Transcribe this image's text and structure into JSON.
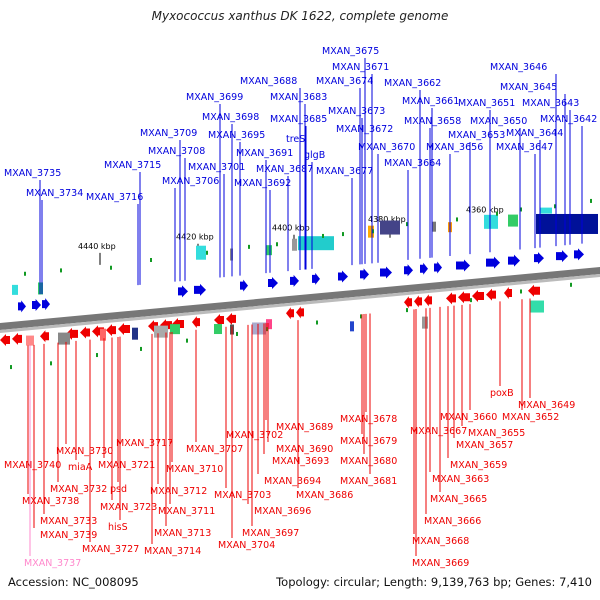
{
  "title": "Myxococcus xanthus DK 1622, complete genome",
  "footer": {
    "accession": "Accession: NC_008095",
    "stats": "Topology: circular; Length: 9,139,763 bp; Genes: 7,410"
  },
  "colors": {
    "forward": "#0000dd",
    "reverse": "#ee0000",
    "highlight": "#ff88cc",
    "backbone": "#777777"
  },
  "ticks": [
    "4440 kbp",
    "4420 kbp",
    "4400 kbp",
    "4380 kbp",
    "4360 kbp"
  ],
  "forward_labels": [
    "MXAN_3675",
    "MXAN_3671",
    "MXAN_3674",
    "MXAN_3662",
    "MXAN_3646",
    "MXAN_3645",
    "MXAN_3688",
    "MXAN_3683",
    "MXAN_3699",
    "MXAN_3673",
    "MXAN_3661",
    "MXAN_3651",
    "MXAN_3643",
    "MXAN_3698",
    "MXAN_3685",
    "MXAN_3658",
    "MXAN_3650",
    "MXAN_3642",
    "MXAN_3709",
    "MXAN_3695",
    "treS",
    "MXAN_3672",
    "MXAN_3653",
    "MXAN_3644",
    "MXAN_3708",
    "MXAN_3691",
    "glgB",
    "MXAN_3670",
    "MXAN_3656",
    "MXAN_3647",
    "MXAN_3715",
    "MXAN_3701",
    "MXAN_3687",
    "MXAN_3664",
    "MXAN_3735",
    "MXAN_3706",
    "MXAN_3692",
    "MXAN_3677",
    "MXAN_3734",
    "MXAN_3716"
  ],
  "reverse_labels": [
    "MXAN_3649",
    "poxB",
    "MXAN_3652",
    "MXAN_3660",
    "MXAN_3678",
    "MXAN_3689",
    "MXAN_3667",
    "MXAN_3655",
    "MXAN_3702",
    "MXAN_3679",
    "MXAN_3690",
    "MXAN_3717",
    "MXAN_3707",
    "MXAN_3657",
    "MXAN_3730",
    "MXAN_3693",
    "MXAN_3680",
    "MXAN_3740",
    "miaA",
    "MXAN_3721",
    "MXAN_3710",
    "MXAN_3659",
    "MXAN_3694",
    "MXAN_3681",
    "MXAN_3663",
    "MXAN_3732",
    "MXAN_3712",
    "MXAN_3703",
    "MXAN_3686",
    "MXAN_3738",
    "psd",
    "MXAN_3723",
    "MXAN_3711",
    "MXAN_3696",
    "MXAN_3665",
    "MXAN_3733",
    "hisS",
    "MXAN_3713",
    "MXAN_3697",
    "MXAN_3666",
    "MXAN_3739",
    "MXAN_3704",
    "MXAN_3727",
    "MXAN_3714",
    "MXAN_3668",
    "MXAN_3669",
    "MXAN_3737"
  ]
}
